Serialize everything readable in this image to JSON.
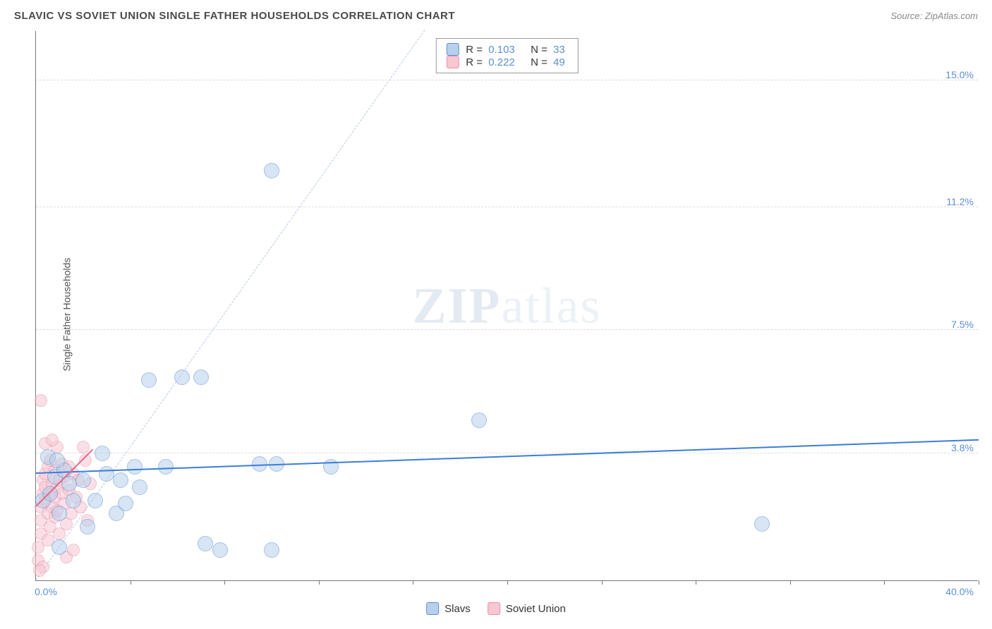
{
  "header": {
    "title": "SLAVIC VS SOVIET UNION SINGLE FATHER HOUSEHOLDS CORRELATION CHART",
    "source": "Source: ZipAtlas.com"
  },
  "watermark": {
    "bold": "ZIP",
    "rest": "atlas"
  },
  "chart": {
    "type": "scatter",
    "background_color": "#ffffff",
    "grid_color": "#dddddd",
    "axis_color": "#777777",
    "tick_label_color": "#5b8fd6",
    "y_axis_title": "Single Father Households",
    "y_axis_title_fontsize": 14,
    "xlim": [
      0,
      40
    ],
    "ylim": [
      0,
      16.5
    ],
    "x_tick_positions": [
      4,
      8,
      12,
      16,
      20,
      24,
      28,
      32,
      36,
      40
    ],
    "y_ticks": [
      {
        "value": 3.8,
        "label": "3.8%"
      },
      {
        "value": 7.5,
        "label": "7.5%"
      },
      {
        "value": 11.2,
        "label": "11.2%"
      },
      {
        "value": 15.0,
        "label": "15.0%"
      }
    ],
    "x_min_label": "0.0%",
    "x_max_label": "40.0%",
    "series": [
      {
        "key": "slavs",
        "label": "Slavs",
        "fill_color": "#b7d0ec",
        "stroke_color": "#5b8fd6",
        "fill_opacity": 0.55,
        "marker_radius": 11,
        "R": "0.103",
        "N": "33",
        "trend": {
          "x1": 0,
          "y1": 3.2,
          "x2": 40,
          "y2": 4.2,
          "color": "#3b7dd8",
          "width": 2.5,
          "solid": true
        },
        "identity": {
          "x1": 0,
          "y1": 0,
          "x2": 16.5,
          "y2": 16.5,
          "color": "#b7d0ec",
          "dash": true
        },
        "points": [
          [
            0.3,
            2.4
          ],
          [
            0.6,
            2.6
          ],
          [
            0.8,
            3.1
          ],
          [
            1.0,
            2.0
          ],
          [
            1.2,
            3.3
          ],
          [
            1.4,
            2.9
          ],
          [
            1.6,
            2.4
          ],
          [
            2.0,
            3.0
          ],
          [
            2.2,
            1.6
          ],
          [
            2.5,
            2.4
          ],
          [
            3.0,
            3.2
          ],
          [
            3.4,
            2.0
          ],
          [
            3.8,
            2.3
          ],
          [
            4.2,
            3.4
          ],
          [
            4.4,
            2.8
          ],
          [
            4.8,
            6.0
          ],
          [
            5.5,
            3.4
          ],
          [
            6.2,
            6.1
          ],
          [
            7.0,
            6.1
          ],
          [
            7.2,
            1.1
          ],
          [
            7.8,
            0.9
          ],
          [
            9.5,
            3.5
          ],
          [
            10.0,
            0.9
          ],
          [
            10.2,
            3.5
          ],
          [
            12.5,
            3.4
          ],
          [
            1.0,
            1.0
          ],
          [
            0.5,
            3.7
          ],
          [
            2.8,
            3.8
          ],
          [
            18.8,
            4.8
          ],
          [
            30.8,
            1.7
          ],
          [
            3.6,
            3.0
          ],
          [
            10.0,
            12.3
          ],
          [
            0.9,
            3.6
          ]
        ]
      },
      {
        "key": "soviet",
        "label": "Soviet Union",
        "fill_color": "#f7c7d2",
        "stroke_color": "#ea8fa8",
        "fill_opacity": 0.55,
        "marker_radius": 9,
        "R": "0.222",
        "N": "49",
        "trend": {
          "x1": 0,
          "y1": 2.2,
          "x2": 2.4,
          "y2": 3.9,
          "color": "#e46a8a",
          "width": 2.5,
          "solid": true
        },
        "identity": {
          "x1": 0,
          "y1": 0,
          "x2": 16.5,
          "y2": 16.5,
          "color": "#f3cbd4",
          "dash": true
        },
        "points": [
          [
            0.1,
            0.6
          ],
          [
            0.1,
            1.0
          ],
          [
            0.2,
            1.4
          ],
          [
            0.2,
            1.8
          ],
          [
            0.2,
            2.2
          ],
          [
            0.3,
            2.6
          ],
          [
            0.3,
            3.0
          ],
          [
            0.3,
            0.4
          ],
          [
            0.4,
            2.4
          ],
          [
            0.4,
            2.8
          ],
          [
            0.4,
            3.2
          ],
          [
            0.5,
            1.2
          ],
          [
            0.5,
            2.0
          ],
          [
            0.5,
            3.4
          ],
          [
            0.6,
            1.6
          ],
          [
            0.6,
            2.6
          ],
          [
            0.6,
            3.6
          ],
          [
            0.7,
            2.2
          ],
          [
            0.7,
            2.9
          ],
          [
            0.8,
            1.9
          ],
          [
            0.8,
            2.5
          ],
          [
            0.8,
            3.3
          ],
          [
            0.9,
            2.1
          ],
          [
            0.9,
            2.8
          ],
          [
            1.0,
            3.0
          ],
          [
            1.0,
            1.4
          ],
          [
            1.1,
            2.6
          ],
          [
            1.1,
            3.5
          ],
          [
            1.2,
            2.3
          ],
          [
            1.2,
            3.1
          ],
          [
            1.3,
            1.7
          ],
          [
            1.4,
            2.7
          ],
          [
            1.4,
            3.4
          ],
          [
            1.5,
            2.0
          ],
          [
            1.6,
            3.2
          ],
          [
            1.7,
            2.5
          ],
          [
            1.8,
            3.0
          ],
          [
            1.9,
            2.2
          ],
          [
            2.0,
            4.0
          ],
          [
            2.1,
            3.6
          ],
          [
            2.2,
            1.8
          ],
          [
            2.3,
            2.9
          ],
          [
            0.2,
            5.4
          ],
          [
            0.4,
            4.1
          ],
          [
            0.9,
            4.0
          ],
          [
            1.3,
            0.7
          ],
          [
            1.6,
            0.9
          ],
          [
            0.15,
            0.3
          ],
          [
            0.7,
            4.2
          ]
        ]
      }
    ],
    "legend": {
      "items": [
        {
          "series": "slavs",
          "label": "Slavs"
        },
        {
          "series": "soviet",
          "label": "Soviet Union"
        }
      ]
    }
  }
}
